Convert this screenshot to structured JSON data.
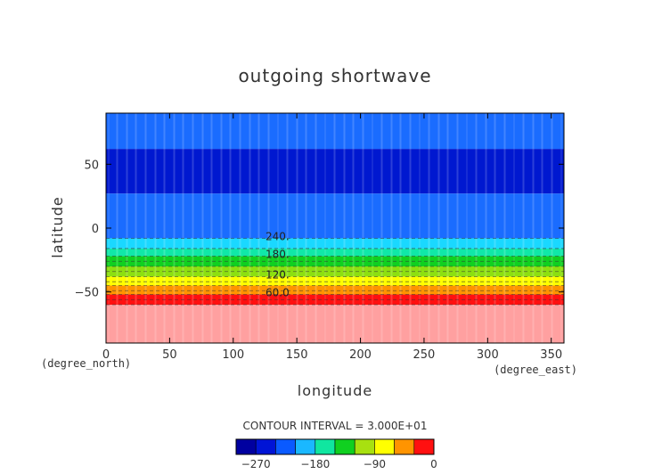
{
  "chart_data": {
    "type": "heatmap",
    "title": "outgoing shortwave",
    "xlabel": "longitude",
    "ylabel": "latitude",
    "x_unit": "(degree_east)",
    "y_unit": "(degree_north)",
    "xlim": [
      0,
      360
    ],
    "ylim": [
      -90,
      90
    ],
    "x_ticks": [
      "0",
      "50",
      "100",
      "150",
      "200",
      "250",
      "300",
      "350"
    ],
    "y_ticks": [
      "-50",
      "0",
      "50"
    ],
    "contour_interval_text": "CONTOUR INTERVAL = 3.000E+01",
    "contour_labels": [
      {
        "text": "240.",
        "value": 240,
        "lat": -8
      },
      {
        "text": "180.",
        "value": 180,
        "lat": -22
      },
      {
        "text": "120.",
        "value": 120,
        "lat": -38
      },
      {
        "text": "60.0",
        "value": 60,
        "lat": -52
      }
    ],
    "color_levels": [
      -300,
      -270,
      -240,
      -210,
      -180,
      -150,
      -120,
      -90,
      -60,
      -30,
      0
    ],
    "colorbar_colors": [
      "#0000a0",
      "#0014d6",
      "#0a5aff",
      "#1ab8ff",
      "#10e6a0",
      "#10d020",
      "#a8e010",
      "#ffff00",
      "#ff9400",
      "#ff1010",
      "#ffa0a0"
    ],
    "colorbar_tick_labels": [
      "-270",
      "-180",
      "-90",
      "0"
    ],
    "bands": [
      {
        "lat_from": 90,
        "lat_to": 62,
        "color": "#1a6cff"
      },
      {
        "lat_from": 62,
        "lat_to": 27,
        "color": "#0018d0"
      },
      {
        "lat_from": 27,
        "lat_to": -8,
        "color": "#1a6cff"
      },
      {
        "lat_from": -8,
        "lat_to": -16,
        "color": "#1ad8ff"
      },
      {
        "lat_from": -16,
        "lat_to": -22,
        "color": "#10e8a8"
      },
      {
        "lat_from": -22,
        "lat_to": -30,
        "color": "#10d020"
      },
      {
        "lat_from": -30,
        "lat_to": -38,
        "color": "#8de010"
      },
      {
        "lat_from": -38,
        "lat_to": -45,
        "color": "#ffff00"
      },
      {
        "lat_from": -45,
        "lat_to": -52,
        "color": "#ff9400"
      },
      {
        "lat_from": -52,
        "lat_to": -60,
        "color": "#ff1010"
      },
      {
        "lat_from": -60,
        "lat_to": -90,
        "color": "#ffa0a0"
      }
    ]
  }
}
